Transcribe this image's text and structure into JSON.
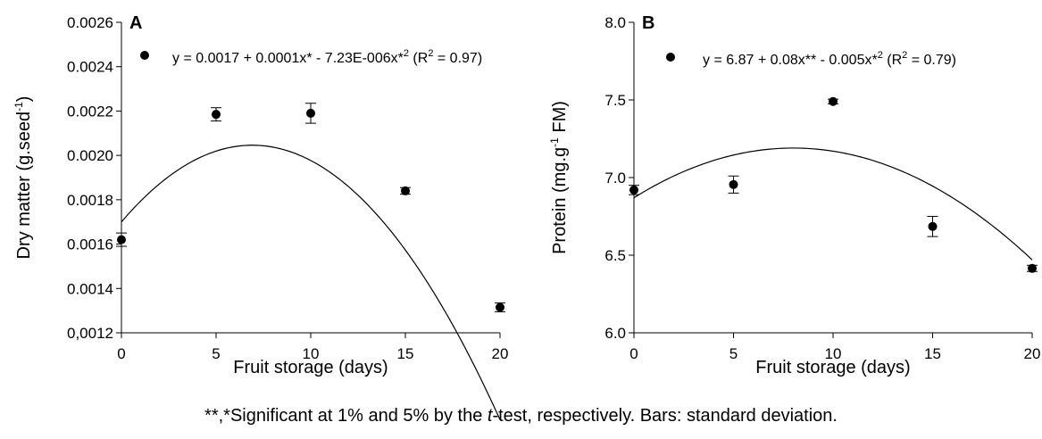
{
  "chart_data": [
    {
      "panel_label": "A",
      "type": "scatter",
      "xlabel": "Fruit storage (days)",
      "ylabel": "Dry matter (g.seed",
      "ylabel_sup": "-1",
      "ylabel_tail": ")",
      "xlim": [
        0,
        20
      ],
      "ylim": [
        0.0012,
        0.0026
      ],
      "xticks": [
        0,
        5,
        10,
        15,
        20
      ],
      "xtick_labels": [
        "0",
        "5",
        "10",
        "15",
        "20"
      ],
      "yticks": [
        0.0012,
        0.0014,
        0.0016,
        0.0018,
        0.002,
        0.0022,
        0.0024,
        0.0026
      ],
      "ytick_labels": [
        "0,0012",
        "0.0014",
        "0.0016",
        "0.0018",
        "0.0020",
        "0.0022",
        "0.0024",
        "0.0026"
      ],
      "points": [
        {
          "x": 0,
          "y": 0.00162,
          "err": 3e-05
        },
        {
          "x": 5,
          "y": 0.002185,
          "err": 3e-05
        },
        {
          "x": 10,
          "y": 0.00219,
          "err": 4.5e-05
        },
        {
          "x": 15,
          "y": 0.00184,
          "err": 1.5e-05
        },
        {
          "x": 20,
          "y": 0.001315,
          "err": 2e-05
        }
      ],
      "fit": {
        "a": 0.0017,
        "b": 0.0001,
        "c": -7.23e-06
      },
      "legend_text": "y = 0.0017 + 0.0001x* - 7.23E-006x*",
      "legend_sup": "2",
      "legend_r2": " (R",
      "legend_r2_sup": "2",
      "legend_r2_tail": " = 0.97)",
      "grid": false
    },
    {
      "panel_label": "B",
      "type": "scatter",
      "xlabel": "Fruit storage (days)",
      "ylabel": "Protein (mg.g",
      "ylabel_sup": "-1",
      "ylabel_tail": " FM)",
      "xlim": [
        0,
        20
      ],
      "ylim": [
        6.0,
        8.0
      ],
      "xticks": [
        0,
        5,
        10,
        15,
        20
      ],
      "xtick_labels": [
        "0",
        "5",
        "10",
        "15",
        "20"
      ],
      "yticks": [
        6.0,
        6.5,
        7.0,
        7.5,
        8.0
      ],
      "ytick_labels": [
        "6.0",
        "6.5",
        "7.0",
        "7.5",
        "8.0"
      ],
      "points": [
        {
          "x": 0,
          "y": 6.92,
          "err": 0.03
        },
        {
          "x": 5,
          "y": 6.955,
          "err": 0.055
        },
        {
          "x": 10,
          "y": 7.49,
          "err": 0.015
        },
        {
          "x": 15,
          "y": 6.685,
          "err": 0.065
        },
        {
          "x": 20,
          "y": 6.415,
          "err": 0.02
        }
      ],
      "fit": {
        "a": 6.87,
        "b": 0.08,
        "c": -0.005
      },
      "legend_text": "y = 6.87 + 0.08x** - 0.005x*",
      "legend_sup": "2",
      "legend_r2": " (R",
      "legend_r2_sup": "2",
      "legend_r2_tail": " = 0.79)",
      "grid": false
    }
  ],
  "footnote": {
    "before": "**,*Significant at 1% and 5% by the ",
    "italic": "t",
    "after": "-test, respectively. Bars: standard deviation."
  }
}
